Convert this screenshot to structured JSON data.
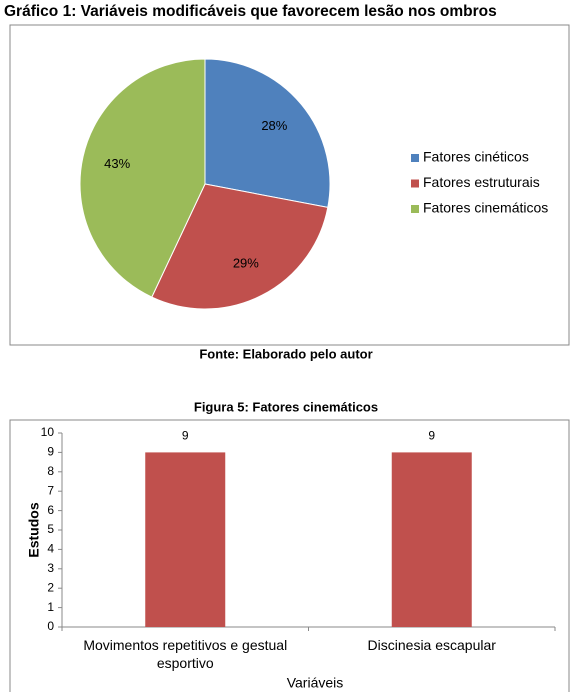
{
  "chart_data": [
    {
      "type": "pie",
      "title": "Gráfico 1: Variáveis modificáveis que favorecem lesão nos ombros",
      "source": "Fonte: Elaborado pelo autor",
      "categories": [
        "Fatores cinéticos",
        "Fatores estruturais",
        "Fatores cinemáticos"
      ],
      "values": [
        28,
        29,
        43
      ],
      "value_labels": [
        "28%",
        "29%",
        "43%"
      ],
      "colors": [
        "#4f81bd",
        "#c0504d",
        "#9bbb59"
      ],
      "legend": "right"
    },
    {
      "type": "bar",
      "title": "Figura 5: Fatores cinemáticos",
      "ylabel": "Estudos",
      "xlabel": "Variáveis",
      "categories": [
        "Movimentos repetitivos e gestual esportivo",
        "Discinesia escapular"
      ],
      "values": [
        9,
        9
      ],
      "color": "#c0504d",
      "ylim": [
        0,
        10
      ],
      "yticks": [
        0,
        1,
        2,
        3,
        4,
        5,
        6,
        7,
        8,
        9,
        10
      ]
    }
  ]
}
